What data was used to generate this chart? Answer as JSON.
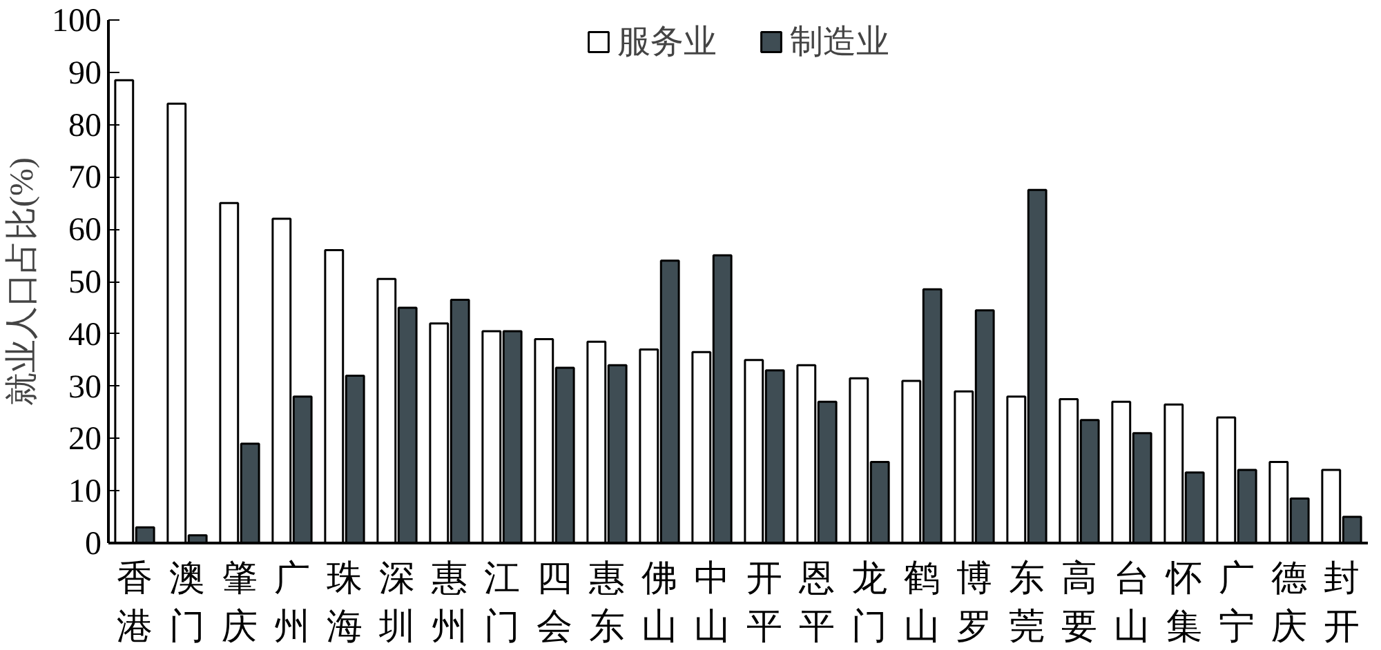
{
  "chart_data": {
    "type": "bar",
    "ylabel": "就业人口占比(%)",
    "categories": [
      "香港",
      "澳门",
      "肇庆",
      "广州",
      "珠海",
      "深圳",
      "惠州",
      "江门",
      "四会",
      "惠东",
      "佛山",
      "中山",
      "开平",
      "恩平",
      "龙门",
      "鹤山",
      "博罗",
      "东莞",
      "高要",
      "台山",
      "怀集",
      "广宁",
      "德庆",
      "封开"
    ],
    "series": [
      {
        "name": "服务业",
        "color": "#ffffff",
        "values": [
          88.5,
          84,
          65,
          62,
          56,
          50.5,
          42,
          40.5,
          39,
          38.5,
          37,
          36.5,
          35,
          34,
          31.5,
          31,
          29,
          28,
          27.5,
          27,
          26.5,
          24,
          15.5,
          14
        ]
      },
      {
        "name": "制造业",
        "color": "#3f4d54",
        "values": [
          3,
          1.5,
          19,
          28,
          32,
          45,
          46.5,
          40.5,
          33.5,
          34,
          54,
          55,
          33,
          27,
          15.5,
          48.5,
          44.5,
          67.5,
          23.5,
          21,
          13.5,
          14,
          8.5,
          5
        ]
      }
    ],
    "ylim": [
      0,
      100
    ],
    "yticks": [
      0,
      10,
      20,
      30,
      40,
      50,
      60,
      70,
      80,
      90,
      100
    ],
    "grid": false,
    "legend": "top"
  }
}
